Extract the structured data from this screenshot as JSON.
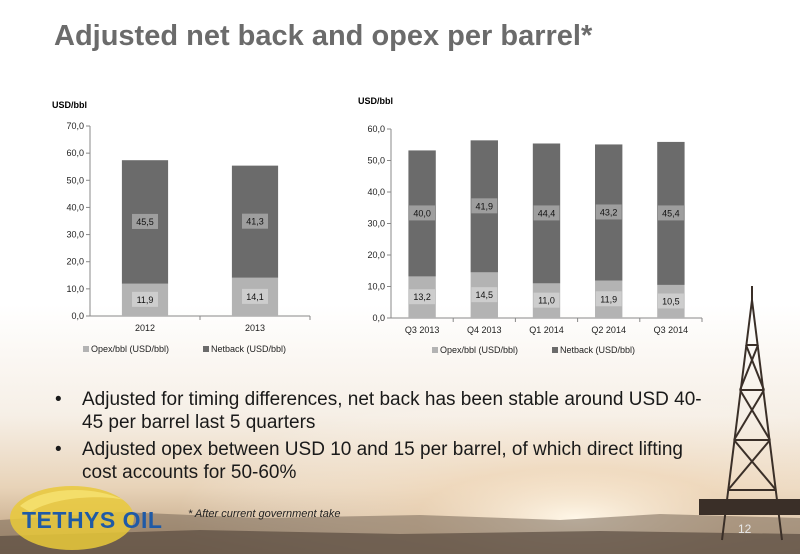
{
  "title": "Adjusted net back and opex per barrel*",
  "chart_data": [
    {
      "type": "bar",
      "stacked": true,
      "ylabel": "USD/bbl",
      "categories": [
        "2012",
        "2013"
      ],
      "series": [
        {
          "name": "Opex/bbl (USD/bbl)",
          "values": [
            11.9,
            14.1
          ],
          "labels": [
            "11,9",
            "14,1"
          ],
          "color": "#b3b3b3"
        },
        {
          "name": "Netback (USD/bbl)",
          "values": [
            45.5,
            41.3
          ],
          "labels": [
            "45,5",
            "41,3"
          ],
          "color": "#6b6b6b"
        }
      ],
      "ylim": [
        0,
        70
      ],
      "yticks": [
        "0,0",
        "10,0",
        "20,0",
        "30,0",
        "40,0",
        "50,0",
        "60,0",
        "70,0"
      ],
      "legend": "bottom"
    },
    {
      "type": "bar",
      "stacked": true,
      "ylabel": "USD/bbl",
      "categories": [
        "Q3 2013",
        "Q4 2013",
        "Q1 2014",
        "Q2 2014",
        "Q3 2014"
      ],
      "series": [
        {
          "name": "Opex/bbl (USD/bbl)",
          "values": [
            13.2,
            14.5,
            11.0,
            11.9,
            10.5
          ],
          "labels": [
            "13,2",
            "14,5",
            "11,0",
            "11,9",
            "10,5"
          ],
          "color": "#b3b3b3"
        },
        {
          "name": "Netback (USD/bbl)",
          "values": [
            40.0,
            41.9,
            44.4,
            43.2,
            45.4
          ],
          "labels": [
            "40,0",
            "41,9",
            "44,4",
            "43,2",
            "45,4"
          ],
          "color": "#6b6b6b"
        }
      ],
      "ylim": [
        0,
        60
      ],
      "yticks": [
        "0,0",
        "10,0",
        "20,0",
        "30,0",
        "40,0",
        "50,0",
        "60,0"
      ],
      "legend": "bottom"
    }
  ],
  "bullets": [
    "Adjusted for timing differences, net back has been stable around USD 40-45 per barrel last 5 quarters",
    "Adjusted opex between USD 10 and 15 per barrel, of which direct lifting cost accounts for 50-60%"
  ],
  "bullet_char": "•",
  "footnote": "* After current government take",
  "logo": "TETHYS OIL",
  "page_number": "12"
}
